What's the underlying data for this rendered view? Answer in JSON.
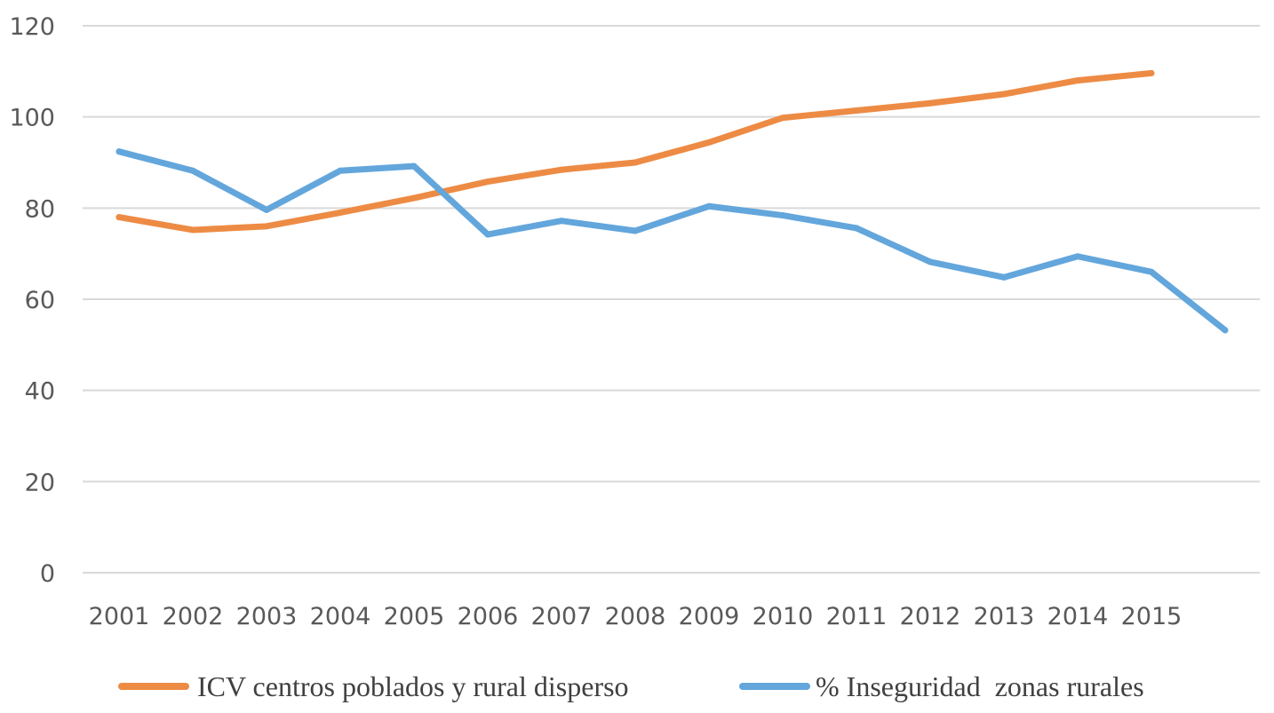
{
  "chart_data": {
    "type": "line",
    "title": "",
    "xlabel": "",
    "ylabel": "",
    "ylim": [
      0,
      120
    ],
    "yticks": [
      0,
      20,
      40,
      60,
      80,
      100,
      120
    ],
    "categories": [
      "2001",
      "2002",
      "2003",
      "2004",
      "2005",
      "2006",
      "2007",
      "2008",
      "2009",
      "2010",
      "2011",
      "2012",
      "2013",
      "2014",
      "2015",
      ""
    ],
    "grid": true,
    "legend_position": "bottom",
    "series": [
      {
        "name": "ICV centros poblados y rural disperso",
        "color": "#ED8B45",
        "values": [
          78,
          75.2,
          76,
          79,
          82.2,
          85.8,
          88.4,
          90,
          94.4,
          99.8,
          101.4,
          103,
          105,
          108,
          109.6,
          null
        ]
      },
      {
        "name": "% Inseguridad  zonas rurales",
        "color": "#63A6DC",
        "values": [
          92.4,
          88.2,
          79.6,
          88.2,
          89.2,
          74.2,
          77.2,
          75,
          80.4,
          78.4,
          75.6,
          68.2,
          64.8,
          69.4,
          66,
          53.2
        ]
      }
    ]
  }
}
